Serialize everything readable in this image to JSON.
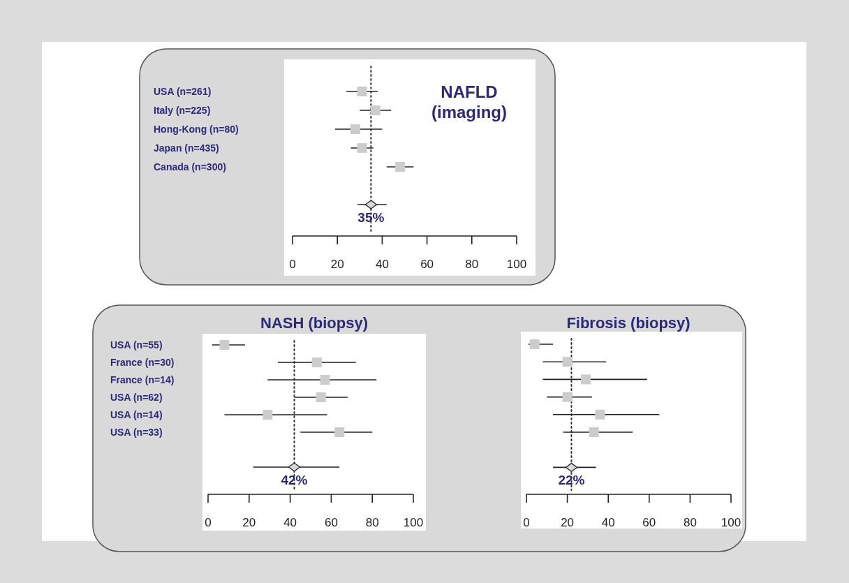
{
  "chart_data": [
    {
      "type": "scatter",
      "orientation": "horizontal",
      "title": "NAFLD\n(imaging)",
      "categories": [
        "USA (n=261)",
        "Italy (n=225)",
        "Hong-Kong (n=80)",
        "Japan (n=435)",
        "Canada (n=300)",
        null,
        null
      ],
      "xlim": [
        0,
        100
      ],
      "xticks": [
        0,
        20,
        40,
        60,
        80,
        100
      ],
      "grid": false,
      "ref_lines": [
        {
          "axis": "x",
          "value": 35,
          "line_style": "dotted",
          "color": "#333333"
        }
      ],
      "series": [
        {
          "marker": "square",
          "color": "#cccccc",
          "values": [
            31,
            37,
            28,
            31,
            48,
            null,
            null
          ],
          "errors": [
            [
              24,
              38
            ],
            [
              30,
              44
            ],
            [
              19,
              40
            ],
            [
              26,
              36
            ],
            [
              42,
              54
            ],
            null,
            null
          ]
        },
        {
          "marker": "diamond",
          "color": "#d9d9d9",
          "values": [
            null,
            null,
            null,
            null,
            null,
            null,
            35
          ],
          "errors": [
            null,
            null,
            null,
            null,
            null,
            null,
            [
              29,
              42
            ]
          ],
          "value_labels": [
            null,
            null,
            null,
            null,
            null,
            null,
            "35%"
          ]
        }
      ]
    },
    {
      "type": "scatter",
      "orientation": "horizontal",
      "title": "NASH (biopsy)",
      "categories": [
        "USA (n=55)",
        "France (n=30)",
        "France (n=14)",
        "USA (n=62)",
        "USA (n=14)",
        "USA (n=33)",
        null,
        null
      ],
      "xlim": [
        0,
        100
      ],
      "xticks": [
        0,
        20,
        40,
        60,
        80,
        100
      ],
      "grid": false,
      "ref_lines": [
        {
          "axis": "x",
          "value": 42,
          "line_style": "dotted",
          "color": "#333333"
        }
      ],
      "series": [
        {
          "marker": "square",
          "color": "#cccccc",
          "values": [
            8,
            53,
            57,
            55,
            29,
            64,
            null,
            null
          ],
          "errors": [
            [
              2,
              18
            ],
            [
              34,
              72
            ],
            [
              29,
              82
            ],
            [
              42,
              68
            ],
            [
              8,
              58
            ],
            [
              45,
              80
            ],
            null,
            null
          ]
        },
        {
          "marker": "diamond",
          "color": "#d9d9d9",
          "values": [
            null,
            null,
            null,
            null,
            null,
            null,
            null,
            42
          ],
          "errors": [
            null,
            null,
            null,
            null,
            null,
            null,
            null,
            [
              22,
              64
            ]
          ],
          "value_labels": [
            null,
            null,
            null,
            null,
            null,
            null,
            null,
            "42%"
          ]
        }
      ]
    },
    {
      "type": "scatter",
      "orientation": "horizontal",
      "title": "Fibrosis (biopsy)",
      "categories": [
        null,
        null,
        null,
        null,
        null,
        null,
        null,
        null
      ],
      "xlim": [
        0,
        100
      ],
      "xticks": [
        0,
        20,
        40,
        60,
        80,
        100
      ],
      "grid": false,
      "ref_lines": [
        {
          "axis": "x",
          "value": 22,
          "line_style": "dotted",
          "color": "#333333"
        }
      ],
      "series": [
        {
          "marker": "square",
          "color": "#cccccc",
          "values": [
            4,
            20,
            29,
            20,
            36,
            33,
            null,
            null
          ],
          "errors": [
            [
              1,
              13
            ],
            [
              8,
              39
            ],
            [
              8,
              59
            ],
            [
              10,
              32
            ],
            [
              13,
              65
            ],
            [
              18,
              52
            ],
            null,
            null
          ]
        },
        {
          "marker": "diamond",
          "color": "#d9d9d9",
          "values": [
            null,
            null,
            null,
            null,
            null,
            null,
            null,
            22
          ],
          "errors": [
            null,
            null,
            null,
            null,
            null,
            null,
            null,
            [
              13,
              34
            ]
          ],
          "value_labels": [
            null,
            null,
            null,
            null,
            null,
            null,
            null,
            "22%"
          ]
        }
      ]
    }
  ]
}
